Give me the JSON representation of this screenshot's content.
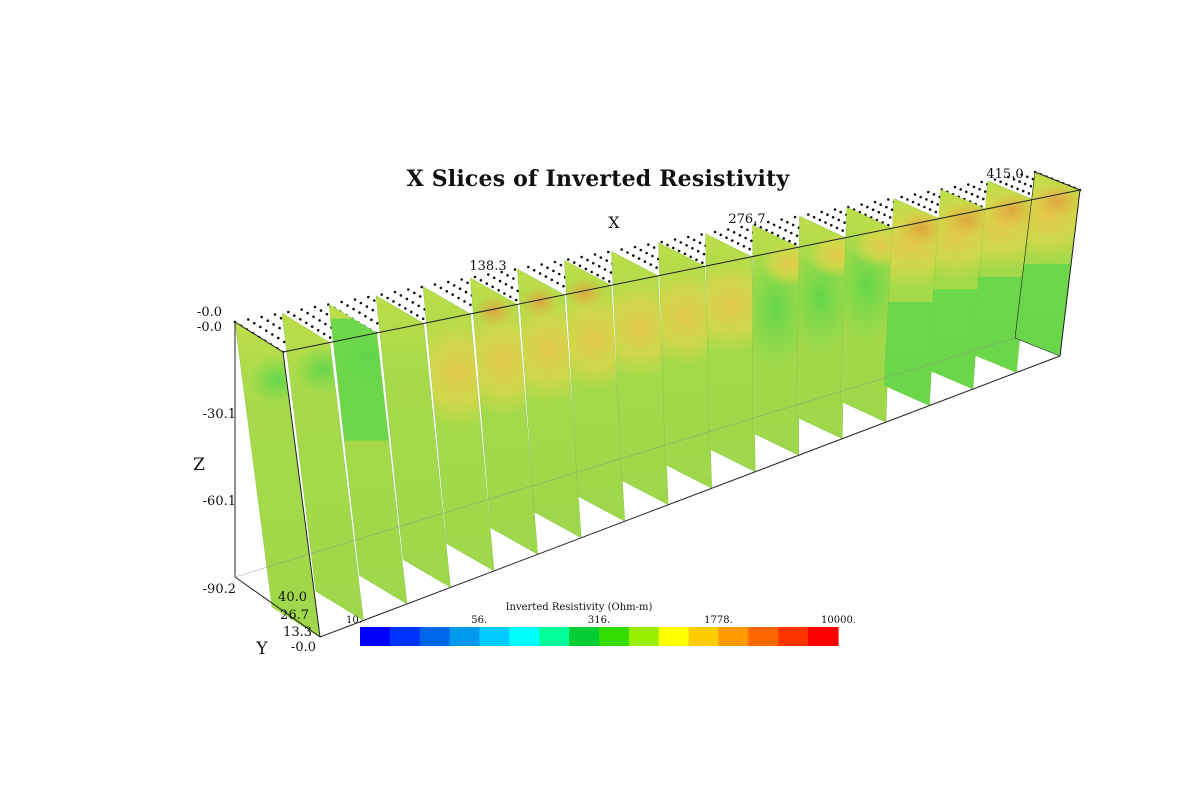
{
  "chart_data": {
    "type": "3d-slices",
    "title": "X Slices of Inverted Resistivity",
    "axes": {
      "x": {
        "label": "X",
        "ticks": [
          "138.3",
          "276.7",
          "415.0"
        ],
        "range": [
          0,
          415.0
        ]
      },
      "y": {
        "label": "Y",
        "ticks": [
          "-0.0",
          "13.3",
          "26.7",
          "40.0"
        ],
        "range": [
          0,
          40.0
        ]
      },
      "z": {
        "label": "Z",
        "ticks": [
          "-0.0",
          "-30.1",
          "-60.1",
          "-90.2"
        ],
        "range": [
          -90.2,
          0
        ]
      },
      "corner_label": "-0.0"
    },
    "slices": {
      "count": 18,
      "x_positions": [
        0,
        24.4,
        48.8,
        73.2,
        97.6,
        122.1,
        146.5,
        170.9,
        195.3,
        219.7,
        244.1,
        268.5,
        292.9,
        317.4,
        341.8,
        366.2,
        390.6,
        415.0
      ],
      "dominant_resistivity_ohm_m": 560,
      "high_zone_resistivity_ohm_m": 1778
    },
    "colorbar": {
      "title": "Inverted Resistivity (Ohm-m)",
      "tick_labels": [
        "10.",
        "56.",
        "316.",
        "1778.",
        "10000."
      ],
      "scale": "log",
      "range": [
        10,
        10000
      ],
      "colors": [
        "#0000ff",
        "#0033ff",
        "#0066ee",
        "#0099ee",
        "#00ccff",
        "#00ffff",
        "#00ff99",
        "#00cc33",
        "#33dd00",
        "#99ee00",
        "#ffff00",
        "#ffcc00",
        "#ff9900",
        "#ff6600",
        "#ff3300",
        "#ff0000"
      ]
    }
  }
}
